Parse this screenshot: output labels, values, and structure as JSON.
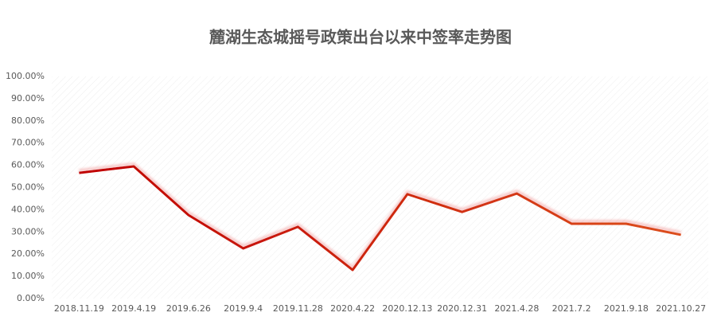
{
  "chart_data": {
    "type": "line",
    "title": "麓湖生态城摇号政策出台以来中签率走势图",
    "categories": [
      "2018.11.19",
      "2019.4.19",
      "2019.6.26",
      "2019.9.4",
      "2019.11.28",
      "2020.4.22",
      "2020.12.13",
      "2020.12.31",
      "2021.4.28",
      "2021.7.2",
      "2021.9.18",
      "2021.10.27"
    ],
    "series": [
      {
        "color": [
          "#c00000",
          "#dc4e1c"
        ],
        "values": [
          56.6,
          59.5,
          37.6,
          22.6,
          32.3,
          12.9,
          47,
          39,
          47.3,
          33.7,
          33.7,
          28.7
        ]
      }
    ],
    "ylim": [
      0,
      100
    ],
    "yticks": [
      {
        "value": 0,
        "label": "0.00%"
      },
      {
        "value": 10,
        "label": "10.00%"
      },
      {
        "value": 20,
        "label": "20.00%"
      },
      {
        "value": 30,
        "label": "30.00%"
      },
      {
        "value": 40,
        "label": "40.00%"
      },
      {
        "value": 50,
        "label": "50.00%"
      },
      {
        "value": 60,
        "label": "60.00%"
      },
      {
        "value": 70,
        "label": "70.00%"
      },
      {
        "value": 80,
        "label": "80.00%"
      },
      {
        "value": 90,
        "label": "90.00%"
      },
      {
        "value": 100,
        "label": "100.00%"
      }
    ],
    "grid": false
  }
}
